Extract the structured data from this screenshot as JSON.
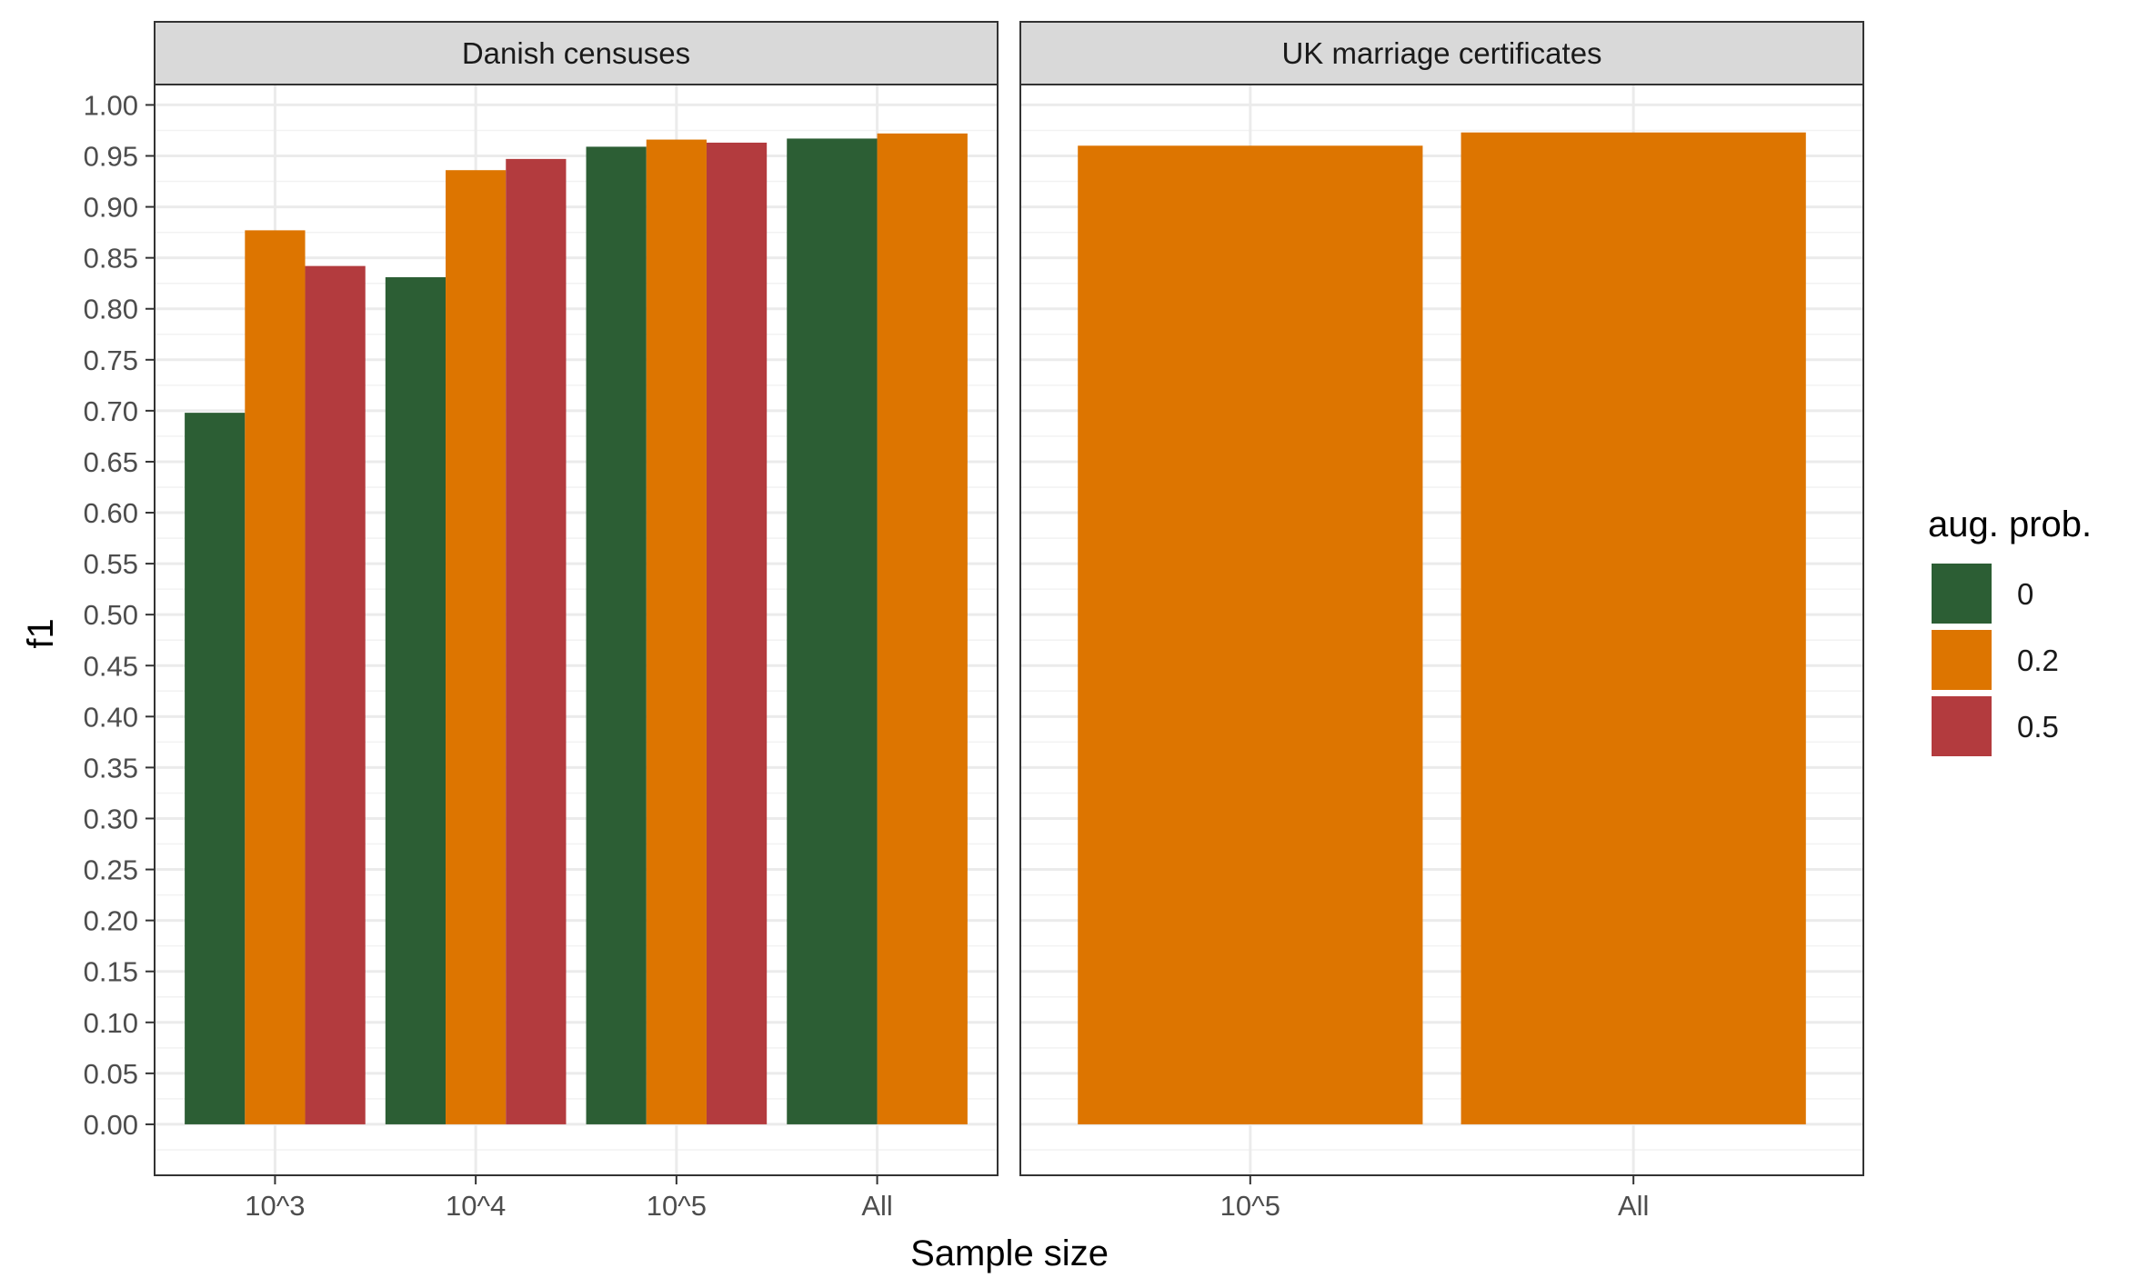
{
  "chart_data": {
    "type": "bar",
    "ylabel": "f1",
    "xlabel": "Sample size",
    "ylim": [
      -0.05,
      1.02
    ],
    "y_ticks": [
      "0.00",
      "0.05",
      "0.10",
      "0.15",
      "0.20",
      "0.25",
      "0.30",
      "0.35",
      "0.40",
      "0.45",
      "0.50",
      "0.55",
      "0.60",
      "0.65",
      "0.70",
      "0.75",
      "0.80",
      "0.85",
      "0.90",
      "0.95",
      "1.00"
    ],
    "grid": true,
    "legend": {
      "title": "aug. prob.",
      "position": "right",
      "entries": [
        {
          "label": "0",
          "color": "#2c5e34"
        },
        {
          "label": "0.2",
          "color": "#dd7500"
        },
        {
          "label": "0.5",
          "color": "#b33b3e"
        }
      ]
    },
    "panels": [
      {
        "title": "Danish censuses",
        "categories": [
          "10^3",
          "10^4",
          "10^5",
          "All"
        ],
        "groups": [
          {
            "category": "10^3",
            "bars": [
              {
                "aug": "0",
                "value": 0.698
              },
              {
                "aug": "0.2",
                "value": 0.877
              },
              {
                "aug": "0.5",
                "value": 0.842
              }
            ]
          },
          {
            "category": "10^4",
            "bars": [
              {
                "aug": "0",
                "value": 0.831
              },
              {
                "aug": "0.2",
                "value": 0.936
              },
              {
                "aug": "0.5",
                "value": 0.947
              }
            ]
          },
          {
            "category": "10^5",
            "bars": [
              {
                "aug": "0",
                "value": 0.959
              },
              {
                "aug": "0.2",
                "value": 0.966
              },
              {
                "aug": "0.5",
                "value": 0.963
              }
            ]
          },
          {
            "category": "All",
            "bars": [
              {
                "aug": "0",
                "value": 0.967
              },
              {
                "aug": "0.2",
                "value": 0.972
              }
            ]
          }
        ]
      },
      {
        "title": "UK marriage certificates",
        "categories": [
          "10^5",
          "All"
        ],
        "groups": [
          {
            "category": "10^5",
            "bars": [
              {
                "aug": "0.2",
                "value": 0.96
              }
            ]
          },
          {
            "category": "All",
            "bars": [
              {
                "aug": "0.2",
                "value": 0.973
              }
            ]
          }
        ]
      }
    ]
  }
}
